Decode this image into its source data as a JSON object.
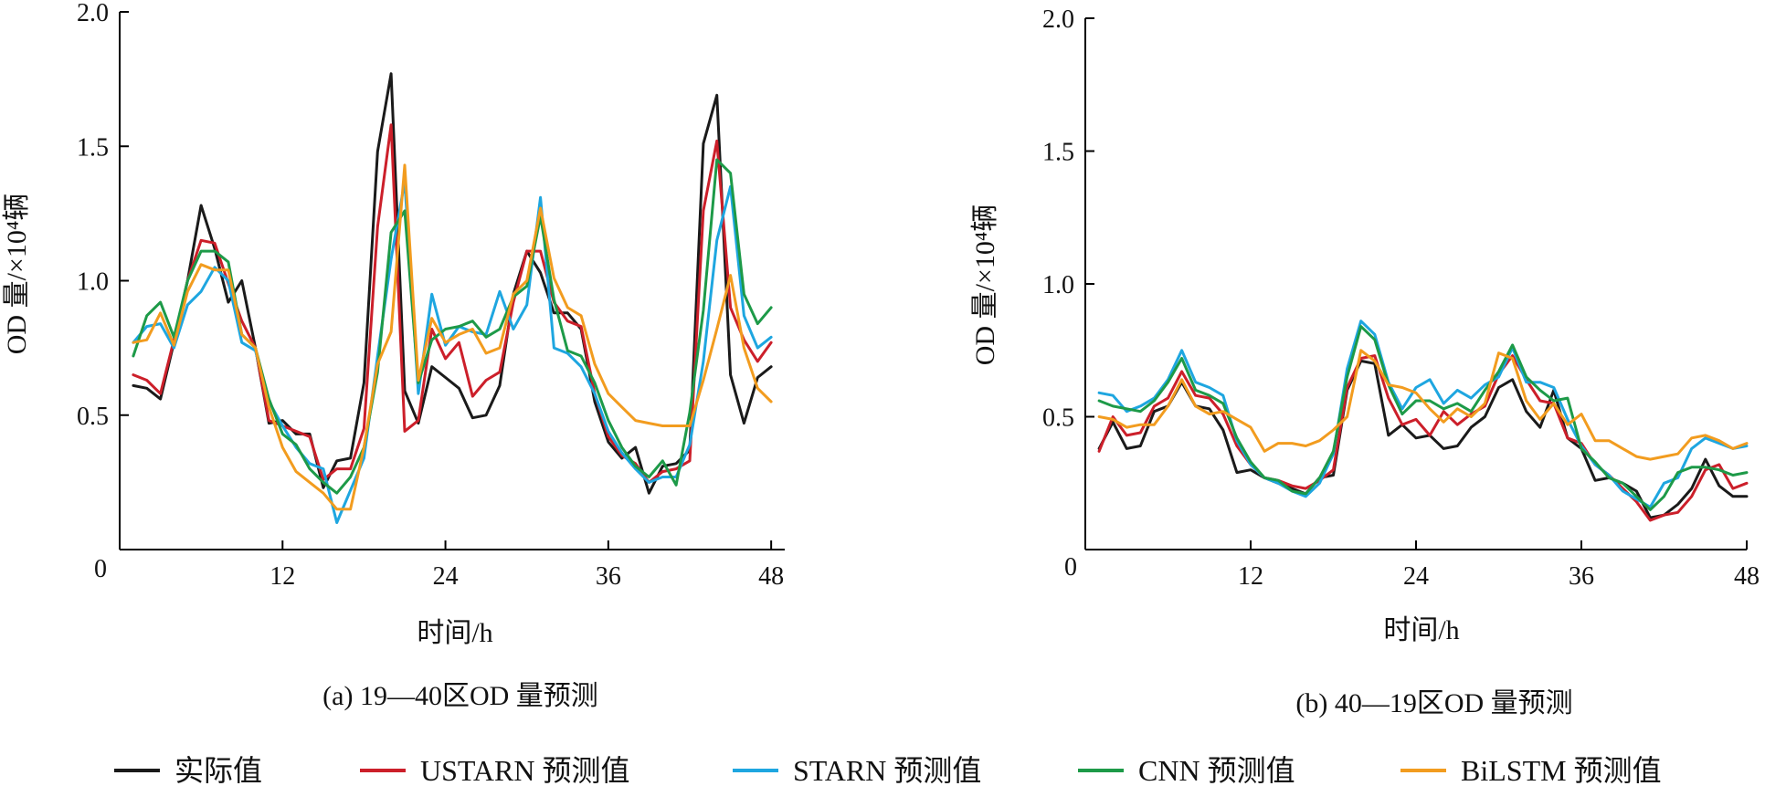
{
  "chart_data": [
    {
      "type": "line",
      "title": "(a) 19—40区OD 量预测",
      "xlabel": "时间/h",
      "ylabel": "OD 量/×10⁴辆",
      "xlim": [
        0,
        49
      ],
      "ylim": [
        0,
        2.0
      ],
      "xticks": [
        12,
        24,
        36,
        48
      ],
      "yticks": [
        0.5,
        1.0,
        1.5,
        2.0
      ],
      "origin_label": "0",
      "x": [
        1,
        2,
        3,
        4,
        5,
        6,
        7,
        8,
        9,
        10,
        11,
        12,
        13,
        14,
        15,
        16,
        17,
        18,
        19,
        20,
        21,
        22,
        23,
        24,
        25,
        26,
        27,
        28,
        29,
        30,
        31,
        32,
        33,
        34,
        35,
        36,
        37,
        38,
        39,
        40,
        41,
        42,
        43,
        44,
        45,
        46,
        47,
        48
      ],
      "series": [
        {
          "name": "实际值",
          "color": "#1a1a1a",
          "values": [
            0.61,
            0.6,
            0.56,
            0.77,
            1.0,
            1.28,
            1.12,
            0.92,
            1.0,
            0.75,
            0.47,
            0.48,
            0.43,
            0.43,
            0.23,
            0.33,
            0.34,
            0.62,
            1.48,
            1.77,
            0.59,
            0.47,
            0.68,
            0.64,
            0.6,
            0.49,
            0.5,
            0.61,
            0.95,
            1.11,
            1.03,
            0.88,
            0.88,
            0.82,
            0.55,
            0.4,
            0.34,
            0.38,
            0.21,
            0.31,
            0.32,
            0.37,
            1.51,
            1.69,
            0.65,
            0.47,
            0.64,
            0.68
          ]
        },
        {
          "name": "USTARN 预测值",
          "color": "#cc1f2a",
          "values": [
            0.65,
            0.63,
            0.58,
            0.78,
            1.0,
            1.15,
            1.14,
            0.99,
            0.85,
            0.75,
            0.48,
            0.46,
            0.44,
            0.42,
            0.26,
            0.3,
            0.3,
            0.45,
            1.2,
            1.58,
            0.44,
            0.48,
            0.82,
            0.71,
            0.77,
            0.57,
            0.63,
            0.66,
            0.92,
            1.11,
            1.11,
            0.92,
            0.85,
            0.83,
            0.58,
            0.42,
            0.35,
            0.32,
            0.25,
            0.29,
            0.3,
            0.33,
            1.26,
            1.52,
            0.9,
            0.78,
            0.7,
            0.77
          ]
        },
        {
          "name": "STARN 预测值",
          "color": "#1ea6e0",
          "values": [
            0.77,
            0.83,
            0.84,
            0.75,
            0.91,
            0.96,
            1.05,
            1.0,
            0.77,
            0.74,
            0.55,
            0.46,
            0.38,
            0.32,
            0.3,
            0.1,
            0.22,
            0.34,
            0.72,
            1.08,
            1.37,
            0.58,
            0.95,
            0.76,
            0.83,
            0.81,
            0.8,
            0.96,
            0.82,
            0.91,
            1.31,
            0.75,
            0.73,
            0.68,
            0.58,
            0.44,
            0.36,
            0.3,
            0.25,
            0.27,
            0.27,
            0.39,
            0.7,
            1.15,
            1.35,
            0.87,
            0.75,
            0.79
          ]
        },
        {
          "name": "CNN 预测值",
          "color": "#1d9a48",
          "values": [
            0.72,
            0.87,
            0.92,
            0.79,
            1.0,
            1.11,
            1.11,
            1.07,
            0.8,
            0.75,
            0.56,
            0.43,
            0.39,
            0.3,
            0.25,
            0.21,
            0.27,
            0.38,
            0.66,
            1.18,
            1.26,
            0.62,
            0.78,
            0.82,
            0.83,
            0.85,
            0.79,
            0.82,
            0.94,
            0.98,
            1.24,
            0.93,
            0.74,
            0.72,
            0.62,
            0.48,
            0.38,
            0.31,
            0.27,
            0.33,
            0.24,
            0.51,
            0.89,
            1.45,
            1.4,
            0.95,
            0.84,
            0.9
          ]
        },
        {
          "name": "BiLSTM 预测值",
          "color": "#f29c1f",
          "values": [
            0.77,
            0.78,
            0.88,
            0.76,
            0.96,
            1.06,
            1.04,
            1.04,
            0.8,
            0.75,
            0.53,
            0.38,
            0.29,
            0.25,
            0.21,
            0.15,
            0.15,
            0.38,
            0.69,
            0.81,
            1.43,
            0.63,
            0.86,
            0.77,
            0.8,
            0.82,
            0.73,
            0.75,
            0.95,
            1.0,
            1.27,
            1.01,
            0.9,
            0.87,
            0.69,
            0.58,
            0.53,
            0.48,
            0.47,
            0.46,
            0.46,
            0.46,
            0.63,
            0.82,
            1.02,
            0.75,
            0.6,
            0.55
          ]
        }
      ]
    },
    {
      "type": "line",
      "title": "(b) 40—19区OD 量预测",
      "xlabel": "时间/h",
      "ylabel": "OD 量/×10⁴辆",
      "xlim": [
        0,
        48
      ],
      "ylim": [
        0,
        2.0
      ],
      "xticks": [
        12,
        24,
        36,
        48
      ],
      "yticks": [
        0.5,
        1.0,
        1.5,
        2.0
      ],
      "origin_label": "0",
      "x": [
        1,
        2,
        3,
        4,
        5,
        6,
        7,
        8,
        9,
        10,
        11,
        12,
        13,
        14,
        15,
        16,
        17,
        18,
        19,
        20,
        21,
        22,
        23,
        24,
        25,
        26,
        27,
        28,
        29,
        30,
        31,
        32,
        33,
        34,
        35,
        36,
        37,
        38,
        39,
        40,
        41,
        42,
        43,
        44,
        45,
        46,
        47,
        48
      ],
      "series": [
        {
          "name": "实际值",
          "color": "#1a1a1a",
          "values": [
            0.38,
            0.48,
            0.38,
            0.39,
            0.52,
            0.54,
            0.63,
            0.54,
            0.53,
            0.45,
            0.29,
            0.3,
            0.27,
            0.25,
            0.23,
            0.21,
            0.27,
            0.28,
            0.6,
            0.71,
            0.7,
            0.43,
            0.47,
            0.42,
            0.43,
            0.38,
            0.39,
            0.46,
            0.5,
            0.61,
            0.64,
            0.52,
            0.46,
            0.6,
            0.42,
            0.38,
            0.26,
            0.27,
            0.25,
            0.22,
            0.12,
            0.13,
            0.17,
            0.23,
            0.34,
            0.24,
            0.2,
            0.2
          ]
        },
        {
          "name": "USTARN 预测值",
          "color": "#cc1f2a",
          "values": [
            0.37,
            0.5,
            0.43,
            0.44,
            0.54,
            0.57,
            0.67,
            0.58,
            0.57,
            0.51,
            0.39,
            0.32,
            0.27,
            0.26,
            0.24,
            0.23,
            0.26,
            0.3,
            0.61,
            0.72,
            0.73,
            0.57,
            0.47,
            0.49,
            0.43,
            0.52,
            0.47,
            0.51,
            0.54,
            0.66,
            0.73,
            0.64,
            0.56,
            0.55,
            0.42,
            0.4,
            0.32,
            0.28,
            0.23,
            0.18,
            0.11,
            0.13,
            0.14,
            0.2,
            0.3,
            0.32,
            0.23,
            0.25
          ]
        },
        {
          "name": "STARN 预测值",
          "color": "#1ea6e0",
          "values": [
            0.59,
            0.58,
            0.52,
            0.54,
            0.57,
            0.64,
            0.75,
            0.63,
            0.61,
            0.58,
            0.41,
            0.32,
            0.27,
            0.25,
            0.22,
            0.2,
            0.25,
            0.36,
            0.68,
            0.86,
            0.81,
            0.63,
            0.53,
            0.61,
            0.64,
            0.55,
            0.6,
            0.57,
            0.62,
            0.65,
            0.76,
            0.63,
            0.63,
            0.61,
            0.49,
            0.39,
            0.32,
            0.28,
            0.22,
            0.19,
            0.16,
            0.25,
            0.27,
            0.38,
            0.42,
            0.4,
            0.38,
            0.39
          ]
        },
        {
          "name": "CNN 预测值",
          "color": "#1d9a48",
          "values": [
            0.56,
            0.54,
            0.53,
            0.52,
            0.56,
            0.63,
            0.72,
            0.6,
            0.58,
            0.55,
            0.42,
            0.33,
            0.27,
            0.26,
            0.22,
            0.21,
            0.27,
            0.37,
            0.65,
            0.84,
            0.79,
            0.62,
            0.51,
            0.56,
            0.56,
            0.53,
            0.55,
            0.52,
            0.6,
            0.67,
            0.77,
            0.65,
            0.6,
            0.56,
            0.57,
            0.38,
            0.33,
            0.27,
            0.25,
            0.2,
            0.15,
            0.2,
            0.29,
            0.31,
            0.31,
            0.3,
            0.28,
            0.29
          ]
        },
        {
          "name": "BiLSTM 预测值",
          "color": "#f29c1f",
          "values": [
            0.5,
            0.49,
            0.46,
            0.47,
            0.47,
            0.54,
            0.64,
            0.54,
            0.51,
            0.52,
            0.49,
            0.46,
            0.37,
            0.4,
            0.4,
            0.39,
            0.41,
            0.45,
            0.5,
            0.75,
            0.71,
            0.62,
            0.61,
            0.59,
            0.53,
            0.48,
            0.53,
            0.5,
            0.55,
            0.74,
            0.72,
            0.56,
            0.49,
            0.55,
            0.47,
            0.51,
            0.41,
            0.41,
            0.38,
            0.35,
            0.34,
            0.35,
            0.36,
            0.42,
            0.43,
            0.41,
            0.38,
            0.4
          ]
        }
      ]
    }
  ],
  "legend": [
    {
      "name": "实际值",
      "color": "#1a1a1a"
    },
    {
      "name": "USTARN 预测值",
      "color": "#cc1f2a"
    },
    {
      "name": "STARN 预测值",
      "color": "#1ea6e0"
    },
    {
      "name": "CNN 预测值",
      "color": "#1d9a48"
    },
    {
      "name": "BiLSTM 预测值",
      "color": "#f29c1f"
    }
  ]
}
